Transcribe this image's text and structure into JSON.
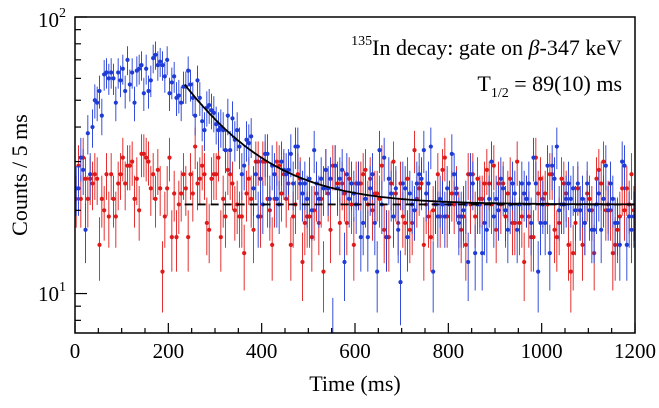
{
  "chart_data": {
    "type": "scatter",
    "title": "",
    "annotations": {
      "line1_sup": "135",
      "line1_main": "In decay: gate on ",
      "line1_beta": "β",
      "line1_rest": "-347 keV",
      "line2_main": "T",
      "line2_sub": "1/2",
      "line2_rest": " = 89(10) ms"
    },
    "xlabel": "Time (ms)",
    "ylabel": "Counts / 5 ms",
    "xlim": [
      0,
      1200
    ],
    "ylim": [
      7.2,
      100
    ],
    "yscale": "log",
    "x_ticks": [
      "0",
      "200",
      "400",
      "600",
      "800",
      "1000",
      "1200"
    ],
    "y_ticks": [
      {
        "base": "10",
        "exp": "2",
        "value": 100
      },
      {
        "base": "10",
        "exp": "1",
        "value": 10
      }
    ],
    "grid": false,
    "legend": "none",
    "bin_width_ms": 5,
    "series": [
      {
        "color": "#1f3bd6",
        "marker": "circle-with-error-bars",
        "profile": [
          [
            5,
            23
          ],
          [
            25,
            30
          ],
          [
            45,
            44
          ],
          [
            65,
            52
          ],
          [
            85,
            58
          ],
          [
            105,
            62
          ],
          [
            125,
            62
          ],
          [
            145,
            61
          ],
          [
            165,
            62
          ],
          [
            185,
            63
          ],
          [
            205,
            61
          ],
          [
            225,
            58
          ],
          [
            245,
            55
          ],
          [
            265,
            50
          ],
          [
            285,
            46
          ],
          [
            305,
            42
          ],
          [
            325,
            39
          ],
          [
            345,
            36
          ],
          [
            365,
            34
          ],
          [
            385,
            32
          ],
          [
            405,
            30
          ],
          [
            445,
            27.5
          ],
          [
            485,
            26
          ],
          [
            525,
            24.5
          ],
          [
            565,
            23.5
          ],
          [
            605,
            23
          ],
          [
            645,
            22.5
          ],
          [
            705,
            22
          ],
          [
            805,
            21.5
          ],
          [
            905,
            21.3
          ],
          [
            1005,
            21.2
          ],
          [
            1105,
            21.1
          ],
          [
            1195,
            21
          ]
        ]
      },
      {
        "color": "#e01919",
        "marker": "circle-with-error-bars",
        "profile": [
          [
            5,
            24
          ],
          [
            100,
            26
          ],
          [
            200,
            25
          ],
          [
            300,
            24
          ],
          [
            400,
            23
          ],
          [
            500,
            22
          ],
          [
            600,
            21.5
          ],
          [
            700,
            21.3
          ],
          [
            800,
            21.2
          ],
          [
            900,
            21.1
          ],
          [
            1000,
            21
          ],
          [
            1100,
            21
          ],
          [
            1195,
            21
          ]
        ]
      }
    ],
    "fit_curve": {
      "style": "solid",
      "color": "#000000",
      "x_range": [
        235,
        1200
      ],
      "baseline": 21,
      "amplitude_at_235": 36,
      "half_life_ms": 89
    },
    "baseline_line": {
      "style": "dashed",
      "color": "#000000",
      "x_range": [
        235,
        1200
      ],
      "value": 21
    }
  }
}
